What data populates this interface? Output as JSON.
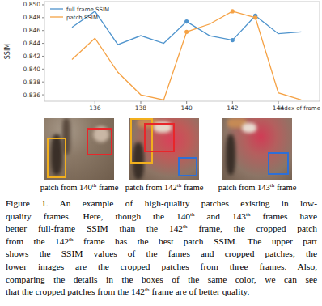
{
  "chart_data": {
    "type": "line",
    "y_label": "SSIM",
    "x_label": "index of frame",
    "x": [
      135,
      136,
      137,
      138,
      139,
      140,
      141,
      142,
      143,
      144,
      145
    ],
    "series": [
      {
        "name": "full frame SSIM",
        "color": "#4f94cd",
        "values": [
          0.8465,
          0.849,
          0.8438,
          0.8452,
          0.844,
          0.8474,
          0.8452,
          0.8445,
          0.8483,
          0.8455,
          0.8458
        ]
      },
      {
        "name": "patch SSIM",
        "color": "#f5a245",
        "values": [
          0.8415,
          0.8448,
          0.8395,
          0.836,
          0.8352,
          0.8458,
          0.847,
          0.849,
          0.848,
          0.8363,
          0.8352
        ]
      }
    ],
    "highlighted_x": [
      140,
      142,
      143
    ],
    "xlim": [
      133.8,
      145.8
    ],
    "xticks": [
      136,
      138,
      140,
      142,
      144
    ],
    "ylim": [
      0.835,
      0.8505
    ],
    "yticks": [
      0.836,
      0.838,
      {
        "value": 0.84,
        "label": "0.840"
      },
      0.842,
      0.844,
      0.846,
      0.848,
      {
        "value": 0.85,
        "label": "0.850"
      }
    ],
    "legend": "upper left",
    "grid": false
  },
  "patches": [
    {
      "caption": [
        "patch from 140",
        {
          "sup": "th"
        },
        " frame"
      ]
    },
    {
      "caption": [
        "patch from 142",
        {
          "sup": "th"
        },
        " frame"
      ]
    },
    {
      "caption": [
        "patch from 143",
        {
          "sup": "th"
        },
        " frame"
      ]
    }
  ],
  "caption": {
    "lines": [
      [
        "Figure 1. An example of high-quality patches existing in low-"
      ],
      [
        "quality frames. Here, though the 140",
        {
          "sup": "th"
        },
        " and 143",
        {
          "sup": "th"
        },
        " frames have"
      ],
      [
        "better full-frame SSIM than the 142",
        {
          "sup": "th"
        },
        " frame, the cropped patch"
      ],
      [
        "from the 142",
        {
          "sup": "th"
        },
        " frame has the best patch SSIM. The upper part"
      ],
      [
        "shows the SSIM values of the fames and cropped patches; the"
      ],
      [
        "lower images are the cropped patches from three frames. Also,"
      ],
      [
        "comparing the details in the boxes of the same color, we can see"
      ],
      [
        "that the cropped patches from the 142",
        {
          "sup": "th"
        },
        " frame are of better quality."
      ]
    ]
  }
}
